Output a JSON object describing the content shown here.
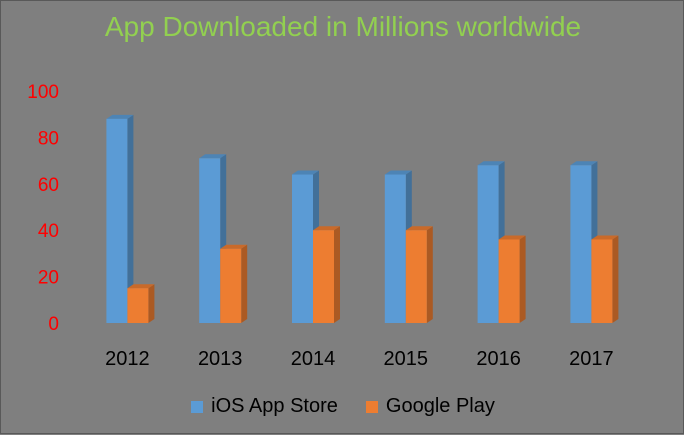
{
  "chart_data": {
    "type": "bar",
    "title": "App Downloaded in Millions worldwide",
    "categories": [
      "2012",
      "2013",
      "2014",
      "2015",
      "2016",
      "2017"
    ],
    "series": [
      {
        "name": "iOS App Store",
        "values": [
          88,
          71,
          64,
          64,
          68,
          68
        ],
        "color": "#5b9bd5"
      },
      {
        "name": "Google Play",
        "values": [
          15,
          32,
          40,
          40,
          36,
          36
        ],
        "color": "#ed7d31"
      }
    ],
    "yticks": [
      "0",
      "20",
      "40",
      "60",
      "80",
      "100"
    ],
    "ylim": [
      0,
      100
    ],
    "grid": false,
    "legend_position": "bottom",
    "colors": {
      "background": "#7f7f7f",
      "title": "#92d050",
      "ytick_labels": "#ff0000",
      "xtick_labels": "#000000"
    }
  }
}
